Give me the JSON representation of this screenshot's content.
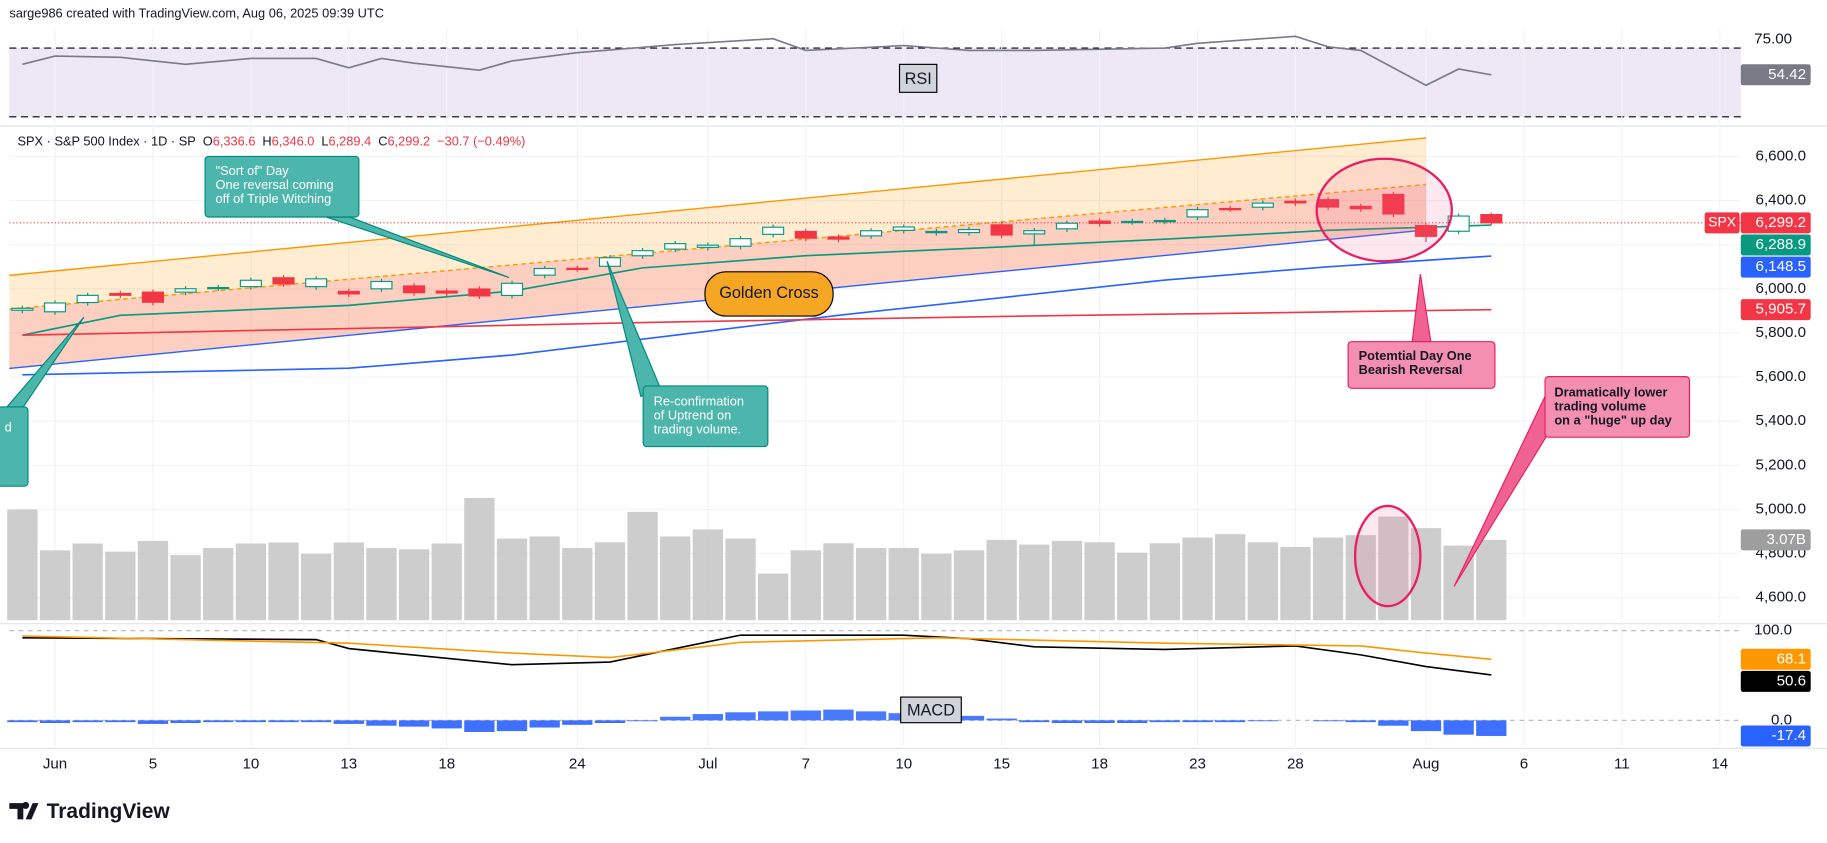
{
  "header": "sarge986 created with TradingView.com, Aug 06, 2025 09:39 UTC",
  "chart_data": {
    "type": "candlestick",
    "symbol": "SPX · S&P 500 Index · 1D · SP",
    "ohlc_legend": [
      {
        "key": "O",
        "value": "6,336.6"
      },
      {
        "key": "H",
        "value": "6,346.0"
      },
      {
        "key": "L",
        "value": "6,289.4"
      },
      {
        "key": "C",
        "value": "6,299.2"
      }
    ],
    "change": "−30.7 (−0.49%)",
    "up_color": "#089981",
    "down_color": "#f23645",
    "open": [
      5903,
      5896,
      5938,
      5979,
      5985,
      5985,
      6004,
      6010,
      6050,
      6010,
      5988,
      6000,
      6013,
      5990,
      5999,
      5970,
      6062,
      6093,
      6102,
      6150,
      6180,
      6188,
      6193,
      6247,
      6260,
      6235,
      6240,
      6265,
      6255,
      6255,
      6290,
      6249,
      6272,
      6307,
      6305,
      6307,
      6326,
      6364,
      6370,
      6397,
      6404,
      6374,
      6428,
      6287,
      6261,
      6336.6
    ],
    "high": [
      5924,
      5948,
      5982,
      5991,
      5997,
      6012,
      6018,
      6051,
      6062,
      6057,
      6000,
      6045,
      6025,
      6002,
      6011,
      6037,
      6104,
      6105,
      6153,
      6185,
      6217,
      6210,
      6239,
      6291,
      6272,
      6247,
      6275,
      6292,
      6272,
      6281,
      6302,
      6276,
      6309,
      6319,
      6318,
      6322,
      6371,
      6376,
      6401,
      6409,
      6416,
      6386,
      6440,
      6299,
      6342,
      6346
    ],
    "low": [
      5889,
      5882,
      5924,
      5957,
      5925,
      5971,
      5990,
      5996,
      6008,
      5996,
      5963,
      5986,
      5969,
      5967,
      5954,
      5956,
      6048,
      6078,
      6088,
      6136,
      6166,
      6174,
      6179,
      6233,
      6216,
      6211,
      6226,
      6251,
      6241,
      6241,
      6230,
      6201,
      6258,
      6283,
      6291,
      6293,
      6312,
      6349,
      6356,
      6376,
      6357,
      6349,
      6325,
      6212,
      6247,
      6289.4
    ],
    "close": [
      5911.7,
      5935.9,
      5970.4,
      5970.8,
      5939.3,
      6000.4,
      6005.9,
      6038.8,
      6022.2,
      6045.3,
      5977.0,
      6033.1,
      5982.7,
      5980.9,
      5967.8,
      6025.2,
      6092.2,
      6092.2,
      6141.0,
      6173.1,
      6204.9,
      6198.0,
      6227.4,
      6279.4,
      6230.0,
      6225.5,
      6263.3,
      6280.5,
      6259.8,
      6268.6,
      6243.8,
      6263.7,
      6297.4,
      6296.8,
      6305.6,
      6309.6,
      6358.9,
      6363.4,
      6388.6,
      6389.8,
      6370.9,
      6362.9,
      6339.4,
      6238.0,
      6329.9,
      6299.2
    ],
    "xlim": [
      -0.4,
      52.5
    ],
    "xticks": [
      {
        "value": 1,
        "label": "Jun"
      },
      {
        "value": 4,
        "label": "5"
      },
      {
        "value": 7,
        "label": "10"
      },
      {
        "value": 10,
        "label": "13"
      },
      {
        "value": 13,
        "label": "18"
      },
      {
        "value": 17,
        "label": "24"
      },
      {
        "value": 21,
        "label": "Jul"
      },
      {
        "value": 24,
        "label": "7"
      },
      {
        "value": 27,
        "label": "10"
      },
      {
        "value": 30,
        "label": "15"
      },
      {
        "value": 33,
        "label": "18"
      },
      {
        "value": 36,
        "label": "23"
      },
      {
        "value": 39,
        "label": "28"
      },
      {
        "value": 43,
        "label": "Aug"
      },
      {
        "value": 46,
        "label": "6"
      },
      {
        "value": 49,
        "label": "11"
      },
      {
        "value": 52,
        "label": "14"
      }
    ],
    "ylim": [
      4498,
      6727
    ],
    "yticks": [
      {
        "value": 4600,
        "label": "4,600.0"
      },
      {
        "value": 4800,
        "label": "4,800.0"
      },
      {
        "value": 5000,
        "label": "5,000.0"
      },
      {
        "value": 5200,
        "label": "5,200.0"
      },
      {
        "value": 5400,
        "label": "5,400.0"
      },
      {
        "value": 5600,
        "label": "5,600.0"
      },
      {
        "value": 5800,
        "label": "5,800.0"
      },
      {
        "value": 6000,
        "label": "6,000.0"
      },
      {
        "value": 6200,
        "label": "6,200.0"
      },
      {
        "value": 6400,
        "label": "6,400.0"
      },
      {
        "value": 6600,
        "label": "6,600.0"
      }
    ],
    "grid": true,
    "series": [
      {
        "color": "#089981",
        "x": [
          0,
          3,
          10,
          15,
          19,
          24,
          30,
          35,
          40,
          45
        ],
        "values": [
          5790,
          5880,
          5925,
          5990,
          6095,
          6150,
          6190,
          6225,
          6265,
          6288.9
        ]
      },
      {
        "color": "#2962ff",
        "x": [
          0,
          10,
          15,
          20,
          25,
          30,
          35,
          40,
          45
        ],
        "values": [
          5610,
          5640,
          5700,
          5790,
          5880,
          5960,
          6040,
          6100,
          6148.5
        ]
      },
      {
        "color": "#f23645",
        "x": [
          0,
          10,
          20,
          30,
          40,
          45
        ],
        "values": [
          5790,
          5820,
          5850,
          5875,
          5895,
          5905.7
        ]
      }
    ],
    "channel": {
      "x": [
        -0.4,
        43
      ],
      "upper": [
        6061,
        6684
      ],
      "middle": [
        5908,
        6473
      ],
      "lower": [
        5639,
        6267
      ],
      "color": "#ff9800",
      "lower_color": "#2962ff"
    },
    "badges": [
      {
        "tag": "SPX",
        "value": 6299.2,
        "label": "6,299.2",
        "color": "#f23645"
      },
      {
        "value": 6288.9,
        "label": "6,288.9",
        "color": "#089981"
      },
      {
        "value": 6148.5,
        "label": "6,148.5",
        "color": "#2962ff"
      },
      {
        "value": 5905.7,
        "label": "5,905.7",
        "color": "#f23645"
      }
    ],
    "volume": {
      "color": "#c4c4c4",
      "ylim": [
        0,
        18.8
      ],
      "values": [
        4.23,
        2.67,
        2.93,
        2.62,
        3.03,
        2.49,
        2.76,
        2.93,
        2.97,
        2.54,
        2.97,
        2.76,
        2.71,
        2.93,
        4.67,
        3.12,
        3.2,
        2.76,
        2.98,
        4.14,
        3.2,
        3.47,
        3.12,
        1.78,
        2.67,
        2.94,
        2.76,
        2.76,
        2.54,
        2.67,
        3.07,
        2.89,
        3.03,
        2.98,
        2.58,
        2.94,
        3.16,
        3.29,
        2.98,
        2.8,
        3.16,
        3.25,
        3.96,
        3.52,
        2.85,
        3.07
      ],
      "badge": {
        "value": 3.07,
        "label": "3.07B"
      }
    },
    "rsi": {
      "label": "RSI",
      "color": "#787b86",
      "ylim": [
        28.6,
        81.5
      ],
      "yticks": [
        {
          "value": 75,
          "label": "75.00"
        }
      ],
      "x": [
        0,
        1,
        3,
        5,
        7,
        9,
        10,
        11,
        12,
        14,
        15,
        17,
        20,
        23,
        24,
        27,
        29,
        31,
        35,
        36,
        39,
        40,
        41,
        43,
        44,
        45
      ],
      "values": [
        60.5,
        65.3,
        64.6,
        60.5,
        63.9,
        63.9,
        58.5,
        63.9,
        61.2,
        57.1,
        62.5,
        67.3,
        72,
        75.4,
        68.6,
        71.4,
        68.6,
        68.6,
        70,
        72.7,
        76.8,
        70.7,
        68.6,
        48.3,
        57.8,
        54.42
      ]
    },
    "macd": {
      "label": "MACD",
      "ylim": [
        -28.6,
        105.2
      ],
      "yticks": [
        {
          "value": 0,
          "label": "0.0"
        },
        {
          "value": 100,
          "label": "100.0"
        }
      ],
      "histogram": [
        -2,
        -3,
        -2,
        -2,
        -4,
        -3,
        -2,
        -2,
        -2,
        -2,
        -4,
        -6,
        -7,
        -9,
        -13,
        -12,
        -8,
        -5,
        -3,
        -1,
        4,
        7,
        9,
        10,
        11,
        12,
        10,
        8,
        7,
        5,
        2,
        -2,
        -3,
        -3,
        -3,
        -2,
        -2,
        -2,
        -1,
        0,
        -1,
        -2,
        -6,
        -12,
        -16,
        -17.4
      ],
      "histogram_color": "#2962ff",
      "macd_line": {
        "color": "#000000",
        "x": [
          0,
          9,
          10,
          15,
          18,
          22,
          27,
          29,
          31,
          35,
          39,
          41,
          43,
          45
        ],
        "values": [
          92,
          90,
          80,
          62,
          65,
          95,
          95,
          91,
          82,
          79,
          83,
          73,
          60,
          50.6
        ]
      },
      "signal_line": {
        "color": "#ff9800",
        "x": [
          0,
          10,
          15,
          18,
          22,
          28,
          35,
          41,
          43,
          45
        ],
        "values": [
          94,
          86,
          75,
          70,
          87,
          92,
          86,
          83,
          75,
          68.1
        ]
      }
    },
    "annotations": [
      {
        "lines": [
          "\"Sort of\" Day",
          "One reversal coming",
          "off of Triple Witching"
        ]
      },
      {
        "lines": [
          "Golden Cross"
        ]
      },
      {
        "lines": [
          "Re-confirmation",
          "of Uptrend on",
          "trading volume."
        ]
      },
      {
        "lines": [
          "Potemtial Day One",
          "Bearish Reversal"
        ]
      },
      {
        "lines": [
          "Dramatically lower",
          "trading volume",
          "on a \"huge\" up day"
        ]
      },
      {
        "lines": [
          "d"
        ]
      }
    ]
  },
  "footer": "TradingView"
}
